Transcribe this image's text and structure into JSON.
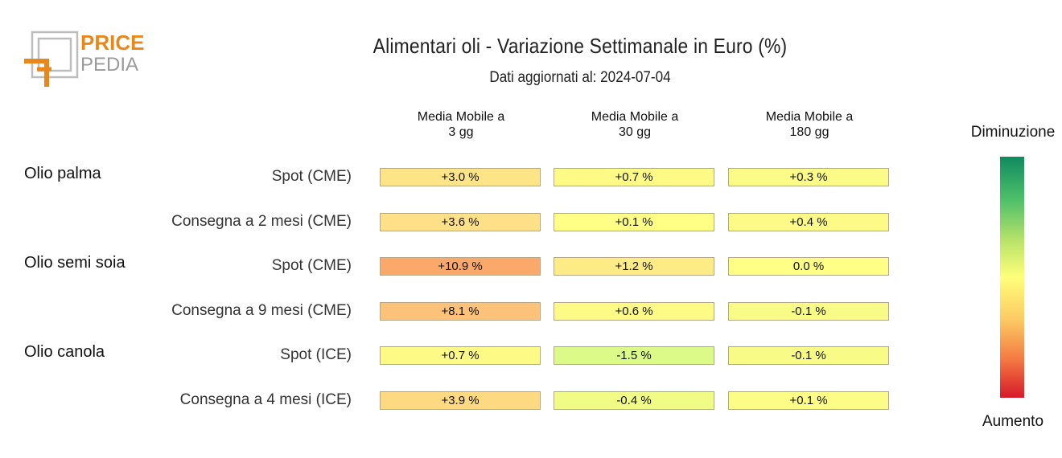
{
  "logo": {
    "line1": "PRICE",
    "line2": "PEDIA",
    "color": "#e8881a"
  },
  "title": "Alimentari oli - Variazione Settimanale in Euro (%)",
  "subtitle": "Dati aggiornati al: 2024-07-04",
  "legend": {
    "top": "Diminuzione",
    "bottom": "Aumento"
  },
  "chart_data": {
    "type": "heatmap",
    "columns": [
      "Media Mobile a\n3 gg",
      "Media Mobile a\n30 gg",
      "Media Mobile a\n180 gg"
    ],
    "column_lines": [
      [
        "Media Mobile a",
        "3 gg"
      ],
      [
        "Media Mobile a",
        "30 gg"
      ],
      [
        "Media Mobile a",
        "180 gg"
      ]
    ],
    "groups": [
      {
        "name": "Olio palma",
        "rows": [
          {
            "label": "Spot (CME)",
            "values": [
              3.0,
              0.7,
              0.3
            ],
            "text": [
              "+3.0 %",
              "+0.7 %",
              "+0.3 %"
            ]
          },
          {
            "label": "Consegna a 2 mesi (CME)",
            "values": [
              3.6,
              0.1,
              0.4
            ],
            "text": [
              "+3.6 %",
              "+0.1 %",
              "+0.4 %"
            ]
          }
        ]
      },
      {
        "name": "Olio semi soia",
        "rows": [
          {
            "label": "Spot (CME)",
            "values": [
              10.9,
              1.2,
              0.0
            ],
            "text": [
              "+10.9 %",
              "+1.2 %",
              "0.0 %"
            ]
          },
          {
            "label": "Consegna a 9 mesi (CME)",
            "values": [
              8.1,
              0.6,
              -0.1
            ],
            "text": [
              "+8.1 %",
              "+0.6 %",
              "-0.1 %"
            ]
          }
        ]
      },
      {
        "name": "Olio canola",
        "rows": [
          {
            "label": "Spot (ICE)",
            "values": [
              0.7,
              -1.5,
              -0.1
            ],
            "text": [
              "+0.7 %",
              "-1.5 %",
              "-0.1 %"
            ]
          },
          {
            "label": "Consegna a 4 mesi (ICE)",
            "values": [
              3.9,
              -0.4,
              0.1
            ],
            "text": [
              "+3.9 %",
              "-0.4 %",
              "+0.1 %"
            ]
          }
        ]
      }
    ],
    "colorscale": {
      "decrease": "#0f8a5f",
      "neutral": "#ffff7a",
      "increase": "#d7182a"
    },
    "cell_colors": [
      [
        "#fde587",
        "#fdfa86",
        "#fdfb88"
      ],
      [
        "#fde087",
        "#ffff86",
        "#fdfa88"
      ],
      [
        "#fba96a",
        "#fdec86",
        "#ffff86"
      ],
      [
        "#fdc279",
        "#fdfa86",
        "#f8fc86"
      ],
      [
        "#fdfa86",
        "#dcfa87",
        "#f8fc86"
      ],
      [
        "#fdda82",
        "#f1fc86",
        "#fdfc86"
      ]
    ]
  }
}
